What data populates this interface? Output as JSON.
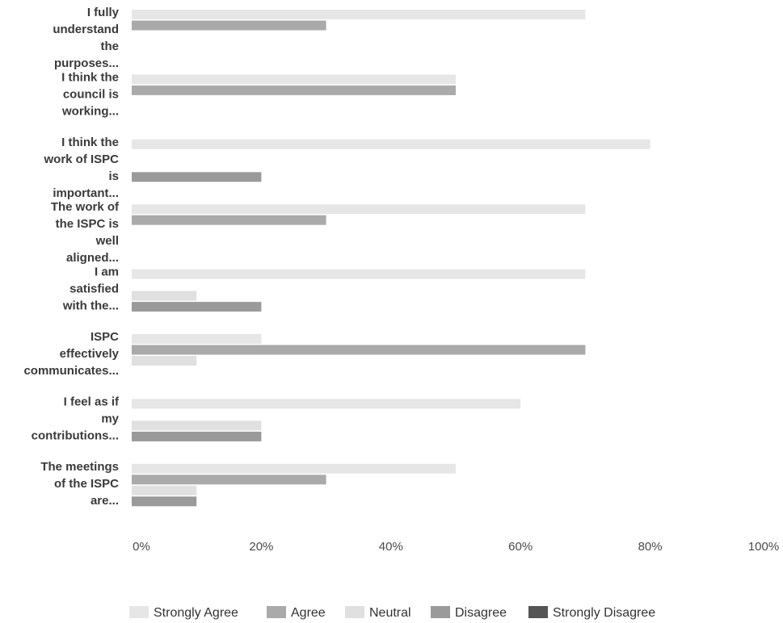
{
  "chart_data": {
    "type": "bar",
    "orientation": "horizontal",
    "categories": [
      "I fully understand the purposes...",
      "I think the council is working...",
      "I think the work of ISPC is important...",
      "The work of the ISPC is well aligned...",
      "I am satisfied with the...",
      "ISPC effectively communicates...",
      "I feel as if my contributions...",
      "The meetings of the ISPC are..."
    ],
    "category_lines": [
      [
        "I fully",
        "understand",
        "the",
        "purposes..."
      ],
      [
        "I think the",
        "council is",
        "working..."
      ],
      [
        "I think the",
        "work of ISPC",
        "is",
        "important..."
      ],
      [
        "The work of",
        "the ISPC is",
        "well",
        "aligned..."
      ],
      [
        "I am",
        "satisfied",
        "with the..."
      ],
      [
        "ISPC",
        "effectively",
        "communicates..."
      ],
      [
        "I feel as if",
        "my",
        "contributions..."
      ],
      [
        "The meetings",
        "of the ISPC",
        "are..."
      ]
    ],
    "series": [
      {
        "name": "Strongly Agree",
        "color": "#e6e6e6",
        "values": [
          70,
          50,
          80,
          70,
          70,
          20,
          60,
          50
        ]
      },
      {
        "name": "Agree",
        "color": "#aaaaaa",
        "values": [
          30,
          50,
          0,
          30,
          0,
          70,
          0,
          30
        ]
      },
      {
        "name": "Neutral",
        "color": "#e0e0e0",
        "values": [
          0,
          0,
          0,
          0,
          10,
          10,
          20,
          10
        ]
      },
      {
        "name": "Disagree",
        "color": "#9a9a9a",
        "values": [
          0,
          0,
          20,
          0,
          20,
          0,
          20,
          10
        ]
      },
      {
        "name": "Strongly Disagree",
        "color": "#555555",
        "values": [
          0,
          0,
          0,
          0,
          0,
          0,
          0,
          0
        ]
      }
    ],
    "xlim": [
      0,
      100
    ],
    "x_ticks": [
      "0%",
      "20%",
      "40%",
      "60%",
      "80%",
      "100%"
    ],
    "x_tick_values": [
      0,
      20,
      40,
      60,
      80,
      100
    ],
    "title": "",
    "xlabel": "",
    "ylabel": "",
    "grid": false,
    "legend_position": "bottom"
  }
}
